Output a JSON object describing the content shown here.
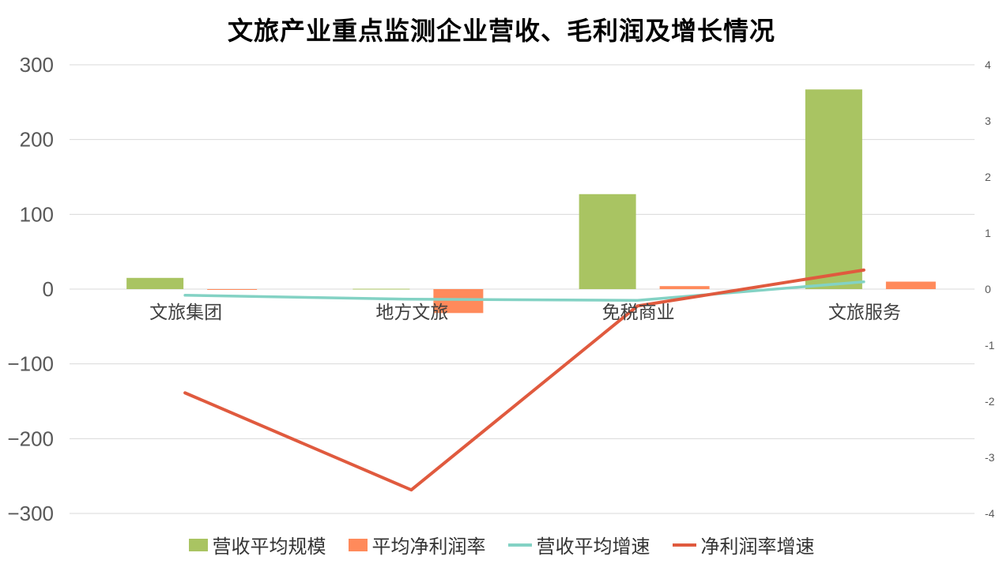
{
  "chart_data": {
    "type": "bar",
    "title": "文旅产业重点监测企业营收、毛利润及增长情况",
    "categories": [
      "文旅集团",
      "地方文旅",
      "免税商业",
      "文旅服务"
    ],
    "y_left": {
      "ylim": [
        -300,
        300
      ],
      "ticks": [
        300,
        200,
        100,
        0,
        -100,
        -200,
        -300
      ],
      "tick_labels": [
        "300",
        "200",
        "100",
        "0",
        "−100",
        "−200",
        "−300"
      ]
    },
    "y_right": {
      "ylim": [
        -4,
        4
      ],
      "ticks": [
        4,
        3,
        2,
        1,
        0,
        -1,
        -2,
        -3,
        -4
      ],
      "tick_labels": [
        "4",
        "3",
        "2",
        "1",
        "0",
        "-1",
        "-2",
        "-3",
        "-4"
      ]
    },
    "grid": true,
    "legend_position": "bottom",
    "series": [
      {
        "name": "营收平均规模",
        "type": "bar",
        "axis": "left",
        "color": "#a9c462",
        "values": [
          15,
          0.5,
          127,
          267
        ]
      },
      {
        "name": "平均净利润率",
        "type": "bar",
        "axis": "left",
        "color": "#ff8a5b",
        "values": [
          -0.5,
          -32,
          4,
          10
        ]
      },
      {
        "name": "营收平均增速",
        "type": "line",
        "axis": "right",
        "color": "#83d2c4",
        "values": [
          -0.11,
          -0.18,
          -0.2,
          0.13
        ]
      },
      {
        "name": "净利润率增速",
        "type": "line",
        "axis": "right",
        "color": "#e05a3e",
        "values": [
          -1.85,
          -3.58,
          -0.3,
          0.34
        ]
      }
    ]
  }
}
